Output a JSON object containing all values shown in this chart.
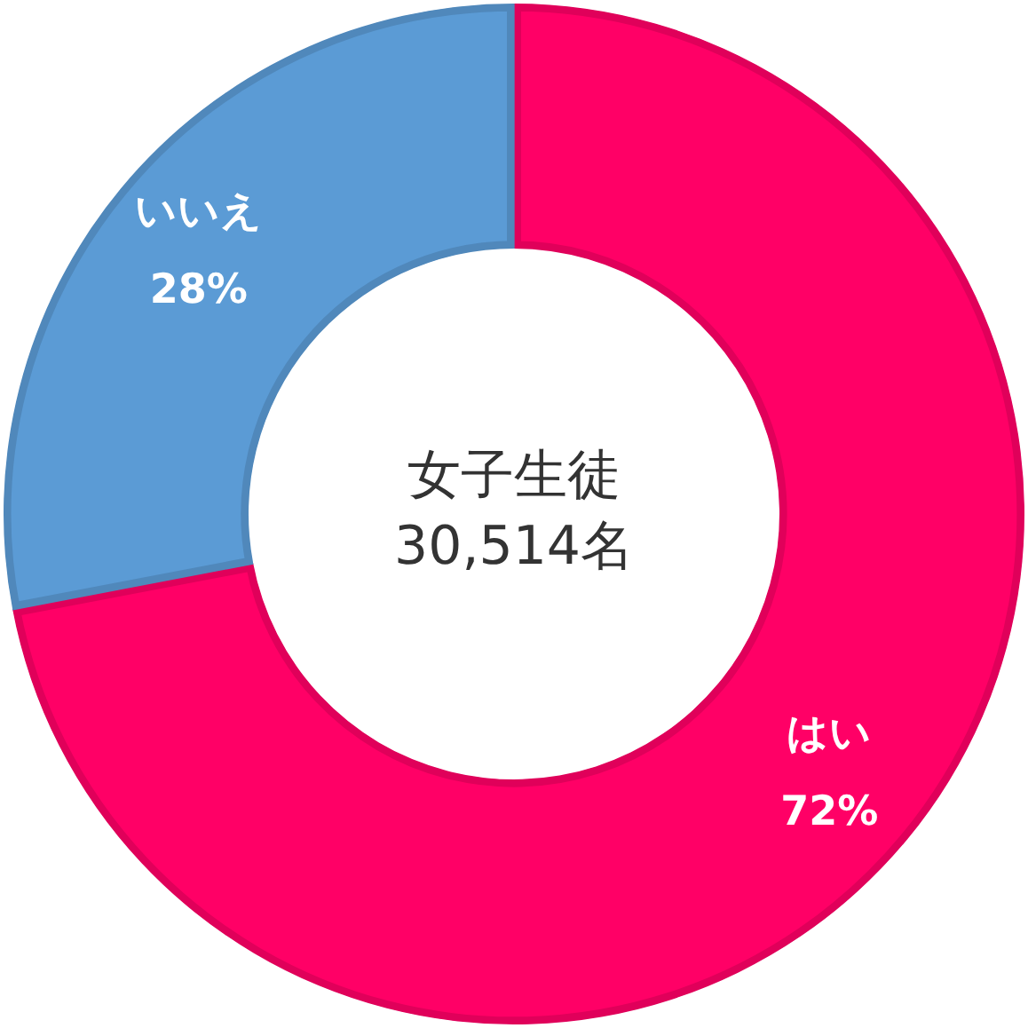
{
  "chart_data": {
    "type": "donut",
    "categories": [
      "はい",
      "いいえ"
    ],
    "values": [
      72,
      28
    ],
    "colors": [
      "#ff0066",
      "#5b9bd5"
    ],
    "value_labels": [
      "72%",
      "28%"
    ],
    "annotations": [
      "女子生徒\n30,514名"
    ],
    "legend": false
  }
}
